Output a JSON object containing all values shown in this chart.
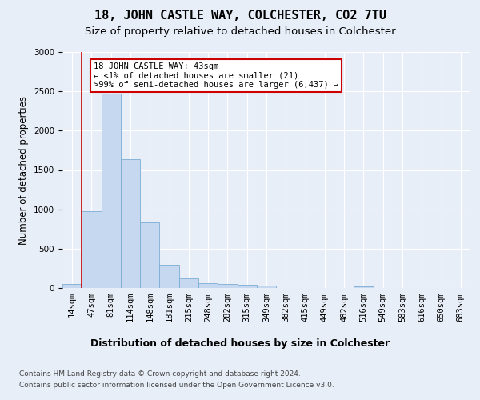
{
  "title": "18, JOHN CASTLE WAY, COLCHESTER, CO2 7TU",
  "subtitle": "Size of property relative to detached houses in Colchester",
  "xlabel": "Distribution of detached houses by size in Colchester",
  "ylabel": "Number of detached properties",
  "categories": [
    "14sqm",
    "47sqm",
    "81sqm",
    "114sqm",
    "148sqm",
    "181sqm",
    "215sqm",
    "248sqm",
    "282sqm",
    "315sqm",
    "349sqm",
    "382sqm",
    "415sqm",
    "449sqm",
    "482sqm",
    "516sqm",
    "549sqm",
    "583sqm",
    "616sqm",
    "650sqm",
    "683sqm"
  ],
  "values": [
    50,
    975,
    2470,
    1640,
    830,
    290,
    120,
    65,
    55,
    45,
    30,
    5,
    0,
    0,
    0,
    25,
    0,
    0,
    0,
    0,
    0
  ],
  "bar_color": "#c5d8f0",
  "bar_edge_color": "#7aadd4",
  "property_line_color": "#cc0000",
  "annotation_line1": "18 JOHN CASTLE WAY: 43sqm",
  "annotation_line2": "← <1% of detached houses are smaller (21)",
  "annotation_line3": ">99% of semi-detached houses are larger (6,437) →",
  "annotation_box_color": "#ffffff",
  "annotation_box_edge_color": "#cc0000",
  "footer_line1": "Contains HM Land Registry data © Crown copyright and database right 2024.",
  "footer_line2": "Contains public sector information licensed under the Open Government Licence v3.0.",
  "ylim": [
    0,
    3000
  ],
  "title_fontsize": 11,
  "subtitle_fontsize": 9.5,
  "xlabel_fontsize": 9,
  "ylabel_fontsize": 8.5,
  "tick_fontsize": 7.5,
  "annotation_fontsize": 7.5,
  "footer_fontsize": 6.5,
  "background_color": "#e8eef8",
  "plot_background_color": "#e8eef8"
}
